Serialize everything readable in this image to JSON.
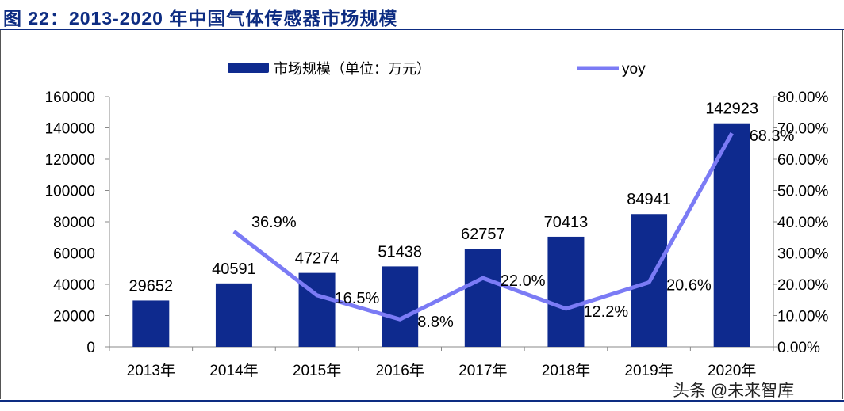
{
  "title": "图 22：2013-2020 年中国气体传感器市场规模",
  "watermark": "头条 @未来智库",
  "colors": {
    "bar": "#0e2a8e",
    "line": "#7b7bf5",
    "title": "#0d2c82"
  },
  "chart_data": {
    "type": "bar+line",
    "categories": [
      "2013年",
      "2014年",
      "2015年",
      "2016年",
      "2017年",
      "2018年",
      "2019年",
      "2020年"
    ],
    "series": [
      {
        "name": "市场规模（单位：万元）",
        "type": "bar",
        "axis": "left",
        "values": [
          29652,
          40591,
          47274,
          51438,
          62757,
          70413,
          84941,
          142923
        ],
        "labels": [
          "29652",
          "40591",
          "47274",
          "51438",
          "62757",
          "70413",
          "84941",
          "142923"
        ]
      },
      {
        "name": "yoy",
        "type": "line",
        "axis": "right",
        "values": [
          null,
          36.9,
          16.5,
          8.8,
          22.0,
          12.2,
          20.6,
          68.3
        ],
        "labels": [
          "",
          "36.9%",
          "16.5%",
          "8.8%",
          "22.0%",
          "12.2%",
          "20.6%",
          "68.3%"
        ]
      }
    ],
    "ylim_left": [
      0,
      160000
    ],
    "yticks_left": [
      "0",
      "20000",
      "40000",
      "60000",
      "80000",
      "100000",
      "120000",
      "140000",
      "160000"
    ],
    "ylim_right": [
      0,
      80
    ],
    "yticks_right": [
      "0.00%",
      "10.00%",
      "20.00%",
      "30.00%",
      "40.00%",
      "50.00%",
      "60.00%",
      "70.00%",
      "80.00%"
    ],
    "grid": false,
    "legend": "top"
  }
}
